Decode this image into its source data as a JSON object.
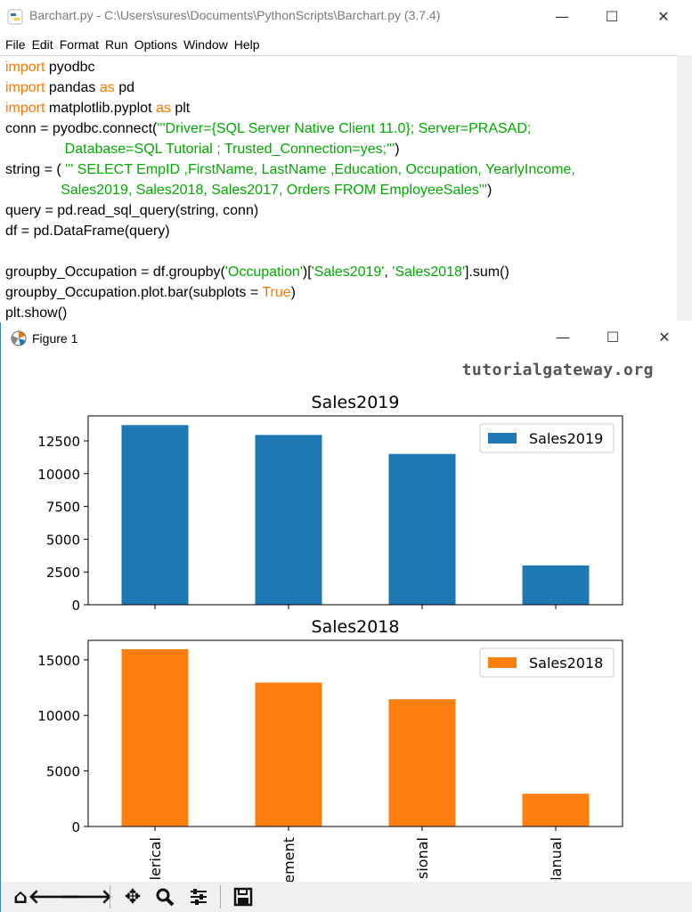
{
  "editor": {
    "title": "Barchart.py - C:\\Users\\sures\\Documents\\PythonScripts\\Barchart.py (3.7.4)",
    "menu": [
      "File",
      "Edit",
      "Format",
      "Run",
      "Options",
      "Window",
      "Help"
    ],
    "code": [
      [
        [
          "kw",
          "import"
        ],
        [
          "tx",
          " pyodbc"
        ]
      ],
      [
        [
          "kw",
          "import"
        ],
        [
          "tx",
          " pandas "
        ],
        [
          "kw",
          "as"
        ],
        [
          "tx",
          " pd"
        ]
      ],
      [
        [
          "kw",
          "import"
        ],
        [
          "tx",
          " matplotlib.pyplot "
        ],
        [
          "kw",
          "as"
        ],
        [
          "tx",
          " plt"
        ]
      ],
      [
        [
          "tx",
          "conn = pyodbc.connect("
        ],
        [
          "st",
          "'''Driver={SQL Server Native Client 11.0}; Server=PRASAD;"
        ]
      ],
      [
        [
          "st",
          "               Database=SQL Tutorial ; Trusted_Connection=yes;'''"
        ],
        [
          "tx",
          ")"
        ]
      ],
      [
        [
          "tx",
          "string = ( "
        ],
        [
          "st",
          "''' SELECT EmpID ,FirstName, LastName ,Education, Occupation, YearlyIncome,"
        ]
      ],
      [
        [
          "st",
          "              Sales2019, Sales2018, Sales2017, Orders FROM EmployeeSales'''"
        ],
        [
          "tx",
          ")"
        ]
      ],
      [
        [
          "tx",
          "query = pd.read_sql_query(string, conn)"
        ]
      ],
      [
        [
          "tx",
          "df = pd.DataFrame(query)"
        ]
      ],
      [
        [
          "tx",
          ""
        ]
      ],
      [
        [
          "tx",
          "groupby_Occupation = df.groupby("
        ],
        [
          "st",
          "'Occupation'"
        ],
        [
          "tx",
          ")["
        ],
        [
          "st",
          "'Sales2019'"
        ],
        [
          "tx",
          ", "
        ],
        [
          "st",
          "'Sales2018'"
        ],
        [
          "tx",
          "].sum()"
        ]
      ],
      [
        [
          "tx",
          "groupby_Occupation.plot.bar(subplots = "
        ],
        [
          "kw",
          "True"
        ],
        [
          "tx",
          ")"
        ]
      ],
      [
        [
          "tx",
          "plt.show()"
        ]
      ]
    ]
  },
  "figure": {
    "title": "Figure 1",
    "watermark": "tutorialgateway.org",
    "toolbar_icons": [
      "home-icon",
      "back-arrow-icon",
      "forward-arrow-icon",
      "pan-icon",
      "zoom-icon",
      "configure-subplots-icon",
      "save-icon"
    ]
  },
  "chart_data": [
    {
      "type": "bar",
      "title": "Sales2019",
      "categories": [
        "Clerical",
        "Management",
        "Professional",
        "Manual"
      ],
      "series": [
        {
          "name": "Sales2019",
          "values": [
            13700,
            12950,
            11500,
            3000
          ],
          "color": "#1f77b4"
        }
      ],
      "yticks": [
        0,
        2500,
        5000,
        7500,
        10000,
        12500
      ],
      "ylim": [
        0,
        14400
      ],
      "legend": "upper right"
    },
    {
      "type": "bar",
      "title": "Sales2018",
      "categories": [
        "Clerical",
        "Management",
        "Professional",
        "Manual"
      ],
      "tick_labels_visible": [
        "lerical",
        "ement",
        "sional",
        "lanual"
      ],
      "series": [
        {
          "name": "Sales2018",
          "values": [
            15950,
            12950,
            11450,
            2950
          ],
          "color": "#ff7f0e"
        }
      ],
      "yticks": [
        0,
        5000,
        10000,
        15000
      ],
      "ylim": [
        0,
        16750
      ],
      "legend": "upper right"
    }
  ]
}
